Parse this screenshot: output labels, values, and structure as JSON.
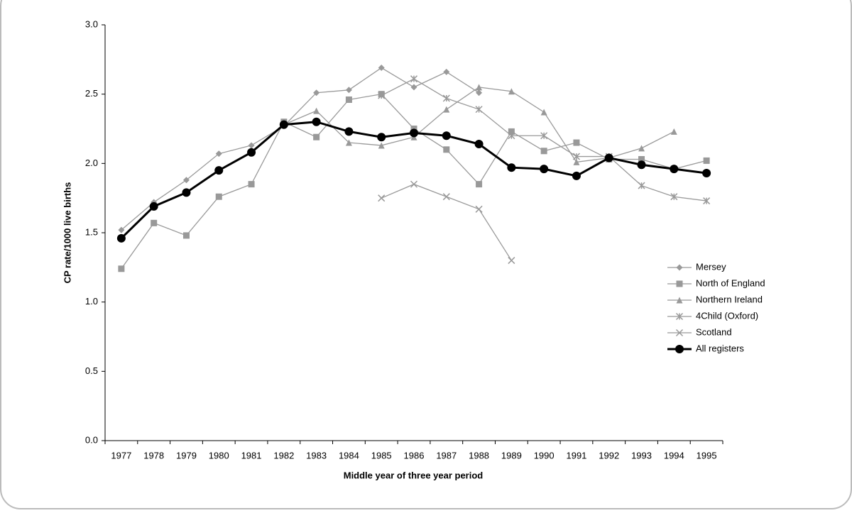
{
  "chart_data": {
    "type": "line",
    "x_label": "Middle year of three year period",
    "y_label": "CP rate/1000 live births",
    "categories": [
      "1977",
      "1978",
      "1979",
      "1980",
      "1981",
      "1982",
      "1983",
      "1984",
      "1985",
      "1986",
      "1987",
      "1988",
      "1989",
      "1990",
      "1991",
      "1992",
      "1993",
      "1994",
      "1995"
    ],
    "ylim": [
      0,
      3
    ],
    "yticks": [
      {
        "value": 0,
        "label": "0.0"
      },
      0.5,
      {
        "value": 1,
        "label": "1.0"
      },
      1.5,
      {
        "value": 2,
        "label": "2.0"
      },
      2.5,
      {
        "value": 3,
        "label": "3.0"
      }
    ],
    "legend": "right",
    "series": [
      {
        "name": "Mersey",
        "color": "#999999",
        "marker": "diamond",
        "values": [
          1.52,
          1.72,
          1.88,
          2.07,
          2.13,
          2.27,
          2.51,
          2.53,
          2.69,
          2.55,
          2.66,
          2.51,
          null,
          null,
          null,
          null,
          null,
          null,
          null
        ]
      },
      {
        "name": "North of England",
        "color": "#999999",
        "marker": "square",
        "values": [
          1.24,
          1.57,
          1.48,
          1.76,
          1.85,
          2.3,
          2.19,
          2.46,
          2.5,
          2.25,
          2.1,
          1.85,
          2.23,
          2.09,
          2.15,
          2.03,
          2.03,
          1.96,
          2.02
        ]
      },
      {
        "name": "Northern Ireland",
        "color": "#999999",
        "marker": "triangle",
        "values": [
          null,
          null,
          null,
          null,
          null,
          2.28,
          2.38,
          2.15,
          2.13,
          2.19,
          2.39,
          2.55,
          2.52,
          2.37,
          2.01,
          2.04,
          2.11,
          2.23,
          null
        ]
      },
      {
        "name": "4Child (Oxford)",
        "color": "#999999",
        "marker": "asterisk",
        "values": [
          null,
          null,
          null,
          null,
          null,
          null,
          null,
          null,
          2.49,
          2.61,
          2.47,
          2.39,
          2.2,
          2.2,
          2.05,
          2.05,
          1.84,
          1.76,
          1.73
        ]
      },
      {
        "name": "Scotland",
        "color": "#999999",
        "marker": "cross",
        "values": [
          null,
          null,
          null,
          null,
          null,
          null,
          null,
          null,
          1.75,
          1.85,
          1.76,
          1.67,
          1.3,
          null,
          null,
          null,
          null,
          null,
          null
        ]
      },
      {
        "name": "All registers",
        "color": "#000000",
        "marker": "circle",
        "values": [
          1.46,
          1.69,
          1.79,
          1.95,
          2.08,
          2.28,
          2.3,
          2.23,
          2.19,
          2.22,
          2.2,
          2.14,
          1.97,
          1.96,
          1.91,
          2.04,
          1.99,
          1.96,
          1.93
        ]
      }
    ]
  }
}
